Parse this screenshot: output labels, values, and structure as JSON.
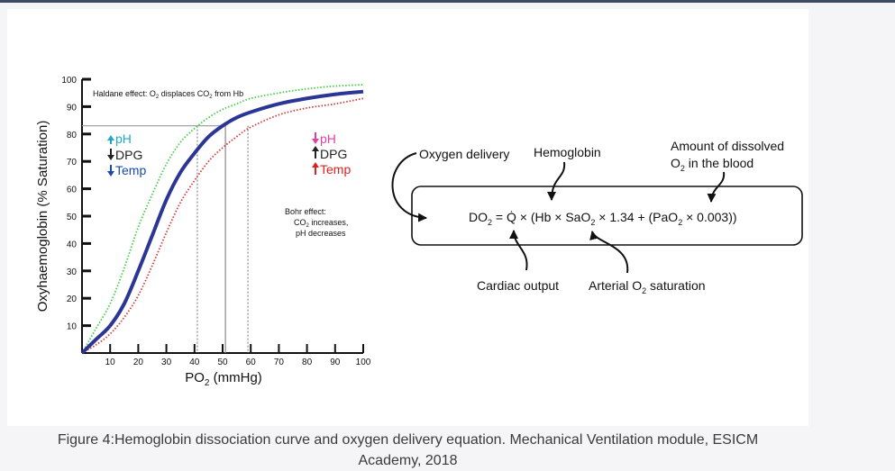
{
  "chart_data": {
    "type": "line",
    "xlabel": "PO",
    "xlabel_sub": "2",
    "xlabel_unit": " (mmHg)",
    "ylabel": "Oxyhaemoglobin (% Saturation)",
    "xlim": [
      0,
      100
    ],
    "ylim": [
      0,
      100
    ],
    "x_ticks": [
      10,
      20,
      30,
      40,
      50,
      60,
      70,
      80,
      90,
      100
    ],
    "y_ticks": [
      10,
      20,
      30,
      40,
      50,
      60,
      70,
      80,
      90,
      100
    ],
    "grid": false,
    "series": [
      {
        "color": "#2b3596",
        "style": "solid",
        "x": [
          0,
          5,
          10,
          15,
          20,
          25,
          30,
          35,
          40,
          45,
          50,
          55,
          60,
          70,
          80,
          90,
          100
        ],
        "y": [
          0,
          5,
          10,
          18,
          30,
          43,
          56,
          66,
          73,
          79,
          83,
          86,
          88,
          91,
          93,
          94.5,
          95.5
        ]
      },
      {
        "color": "#44cc44",
        "style": "dotted",
        "x": [
          0,
          5,
          10,
          15,
          20,
          25,
          30,
          35,
          40,
          45,
          50,
          55,
          60,
          70,
          80,
          90,
          100
        ],
        "y": [
          0,
          9,
          18,
          31,
          46,
          58,
          69,
          77,
          82,
          86,
          89,
          91,
          93,
          95,
          96.5,
          97.5,
          98
        ]
      },
      {
        "color": "#d23b3b",
        "style": "dotted",
        "x": [
          0,
          5,
          10,
          15,
          20,
          25,
          30,
          35,
          40,
          45,
          50,
          55,
          60,
          70,
          80,
          90,
          100
        ],
        "y": [
          0,
          3,
          7,
          13,
          21,
          32,
          44,
          55,
          63,
          70,
          75,
          79,
          82.5,
          87,
          89.5,
          91,
          93
        ]
      }
    ],
    "reference_lines": [
      {
        "x": 41,
        "y": 83,
        "style": "dotted"
      },
      {
        "x": 51,
        "y": 83,
        "style": "solid"
      },
      {
        "x": 59,
        "y": 83,
        "style": "dotted"
      }
    ],
    "annotations": {
      "haldane_prefix": "Haldane effect: O",
      "haldane_mid": " displaces CO",
      "haldane_suffix": " from Hb",
      "sub2": "2",
      "left_shift": [
        "pH",
        "DPG",
        "Temp"
      ],
      "right_shift": [
        "pH",
        "DPG",
        "Temp"
      ],
      "bohr_line1": "Bohr effect:",
      "bohr_line2_a": "CO",
      "bohr_line2_b": " increases,",
      "bohr_line3": "pH decreases"
    }
  },
  "equation": {
    "do": "DO",
    "sub2": "2",
    "eq_part1": " = Q̇ × (Hb × SaO",
    "eq_part2": " × 1.34 + (PaO",
    "eq_part3": " × 0.003))",
    "label_oxygen_delivery": "Oxygen delivery",
    "label_hemoglobin": "Hemoglobin",
    "label_dissolved_1": "Amount of dissolved",
    "label_dissolved_2a": "O",
    "label_dissolved_2b": " in the blood",
    "label_cardiac_output": "Cardiac output",
    "label_arterial_a": "Arterial O",
    "label_arterial_b": " saturation"
  },
  "colors": {
    "up_left": "#20a8c8",
    "down_left": "#222222",
    "down_right": "#e040a0",
    "up_right": "#e02020",
    "temp_left": "#1a4aa8",
    "temp_right": "#e02020"
  },
  "caption": {
    "line1": "Figure 4:Hemoglobin dissociation curve and oxygen delivery equation. Mechanical Ventilation module, ESICM",
    "line2": "Academy, 2018"
  }
}
